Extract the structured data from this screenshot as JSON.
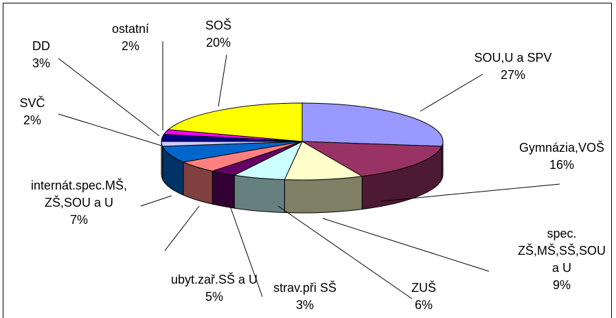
{
  "chart_data": {
    "type": "pie3d",
    "categories": [
      "SOU,U a SPV",
      "Gymnázia,VOŠ",
      "spec. ZŠ,MŠ,SŠ,SOU a U",
      "ZUŠ",
      "strav.při SŠ",
      "ubyt.zař.SŠ a U",
      "internát.spec.MŠ, ZŠ,SOU a U",
      "SVČ",
      "DD",
      "ostatní",
      "SOŠ"
    ],
    "values": [
      27,
      16,
      9,
      6,
      3,
      5,
      7,
      2,
      3,
      2,
      20
    ],
    "value_labels": [
      "27%",
      "16%",
      "9%",
      "6%",
      "3%",
      "5%",
      "7%",
      "2%",
      "3%",
      "2%",
      "20%"
    ],
    "colors": [
      "#9999ff",
      "#993366",
      "#ffffcc",
      "#ccffff",
      "#660066",
      "#ff8080",
      "#0066cc",
      "#ccccff",
      "#000080",
      "#ff00ff",
      "#ffff00"
    ]
  }
}
